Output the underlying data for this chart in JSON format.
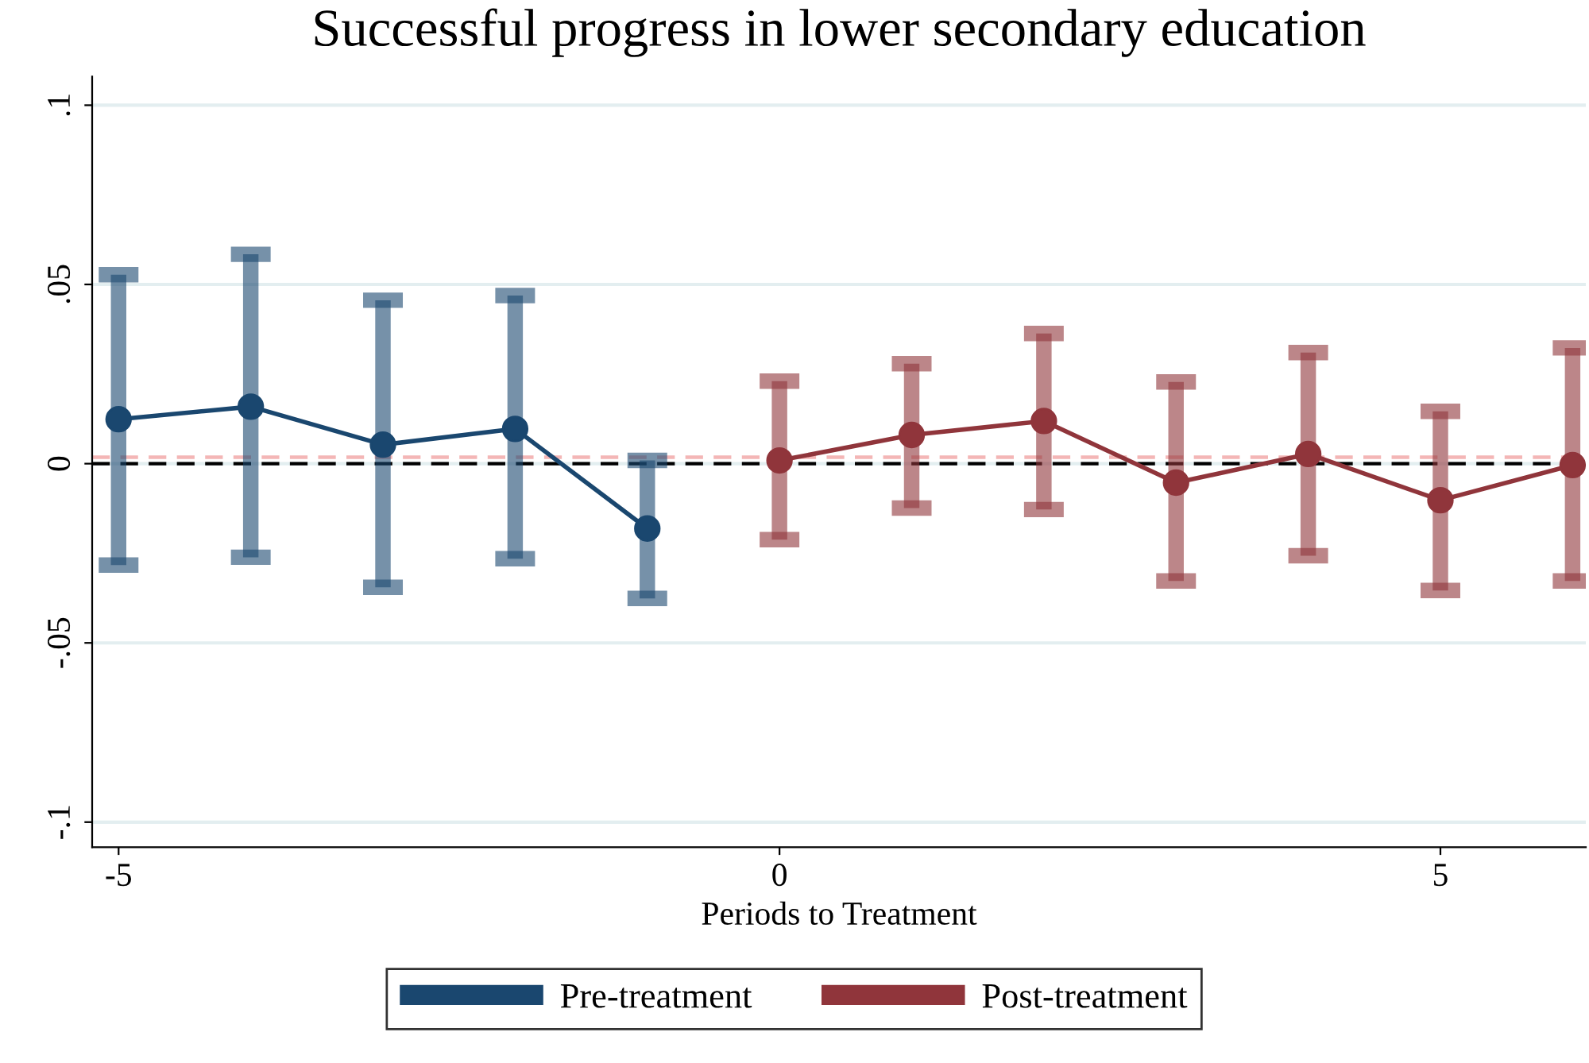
{
  "chart_data": {
    "type": "line",
    "title": "Successful progress in lower secondary education",
    "xlabel": "Periods to Treatment",
    "series": [
      {
        "name": "Pre-treatment",
        "color": "#1a476f",
        "x": [
          -5,
          -4,
          -3,
          -2,
          -1
        ],
        "values": [
          0.0124,
          0.0159,
          0.0053,
          0.0097,
          -0.0181
        ],
        "errors": [
          [
            -0.0283,
            0.0527
          ],
          [
            -0.0261,
            0.0584
          ],
          [
            -0.0345,
            0.0456
          ],
          [
            -0.0265,
            0.0469
          ],
          [
            -0.0376,
            0.0009
          ]
        ]
      },
      {
        "name": "Post-treatment",
        "color": "#90353b",
        "x": [
          0,
          1,
          2,
          3,
          4,
          5,
          6
        ],
        "values": [
          0.0009,
          0.008,
          0.0119,
          -0.0053,
          0.0027,
          -0.0102,
          -0.0004
        ],
        "errors": [
          [
            -0.0212,
            0.023
          ],
          [
            -0.0124,
            0.0279
          ],
          [
            -0.0128,
            0.0363
          ],
          [
            -0.0327,
            0.0228
          ],
          [
            -0.0257,
            0.031
          ],
          [
            -0.0354,
            0.0146
          ],
          [
            -0.0327,
            0.0323
          ]
        ]
      }
    ],
    "ref_lines": [
      {
        "axis": "y",
        "value": 0,
        "color": "#000000",
        "line_style": "dashed"
      },
      {
        "axis": "y",
        "value": 0.0018,
        "color": "#f4b6b6",
        "line_style": "dashed"
      }
    ],
    "xlim": [
      -5.2,
      6.1
    ],
    "xticks": [
      -5,
      0,
      5
    ],
    "ylim": [
      -0.107,
      0.108
    ],
    "yticks": [
      {
        "value": -0.1,
        "label": "-.1"
      },
      {
        "value": -0.05,
        "label": "-.05"
      },
      0,
      {
        "value": 0.05,
        "label": ".05"
      },
      {
        "value": 0.1,
        "label": ".1"
      }
    ],
    "grid": "y",
    "legend": "bottom",
    "marker": "circle",
    "line_style": "solid"
  }
}
